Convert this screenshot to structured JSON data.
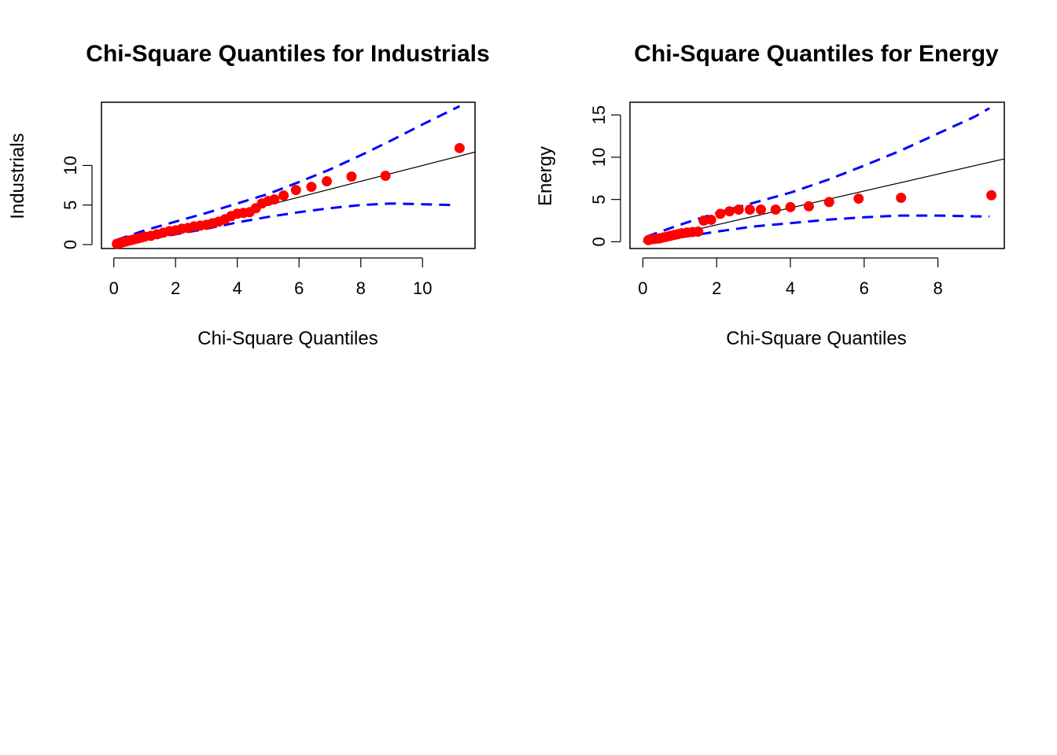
{
  "chart_data": [
    {
      "type": "scatter",
      "title": "Chi-Square Quantiles for Industrials",
      "xlabel": "Chi-Square Quantiles",
      "ylabel": "Industrials",
      "xlim": [
        -0.4,
        11.7
      ],
      "ylim": [
        -0.5,
        18.0
      ],
      "x_ticks": [
        0,
        2,
        4,
        6,
        8,
        10
      ],
      "y_ticks": [
        0,
        5,
        10
      ],
      "grid": false,
      "colors": {
        "points": "#ff0000",
        "reference_line": "#000000",
        "envelope": "#0000ff"
      },
      "reference_line": {
        "intercept": 0.0,
        "slope": 1.0
      },
      "points": [
        [
          0.1,
          0.1
        ],
        [
          0.2,
          0.2
        ],
        [
          0.3,
          0.3
        ],
        [
          0.4,
          0.4
        ],
        [
          0.5,
          0.5
        ],
        [
          0.6,
          0.6
        ],
        [
          0.7,
          0.7
        ],
        [
          0.8,
          0.8
        ],
        [
          0.9,
          0.9
        ],
        [
          1.0,
          1.0
        ],
        [
          1.2,
          1.1
        ],
        [
          1.4,
          1.3
        ],
        [
          1.6,
          1.5
        ],
        [
          1.8,
          1.7
        ],
        [
          2.0,
          1.8
        ],
        [
          2.2,
          2.0
        ],
        [
          2.4,
          2.1
        ],
        [
          2.6,
          2.3
        ],
        [
          2.8,
          2.4
        ],
        [
          3.0,
          2.5
        ],
        [
          3.2,
          2.7
        ],
        [
          3.4,
          2.9
        ],
        [
          3.6,
          3.2
        ],
        [
          3.8,
          3.6
        ],
        [
          4.0,
          3.9
        ],
        [
          4.2,
          4.0
        ],
        [
          4.4,
          4.1
        ],
        [
          4.6,
          4.6
        ],
        [
          4.8,
          5.2
        ],
        [
          5.0,
          5.5
        ],
        [
          5.2,
          5.7
        ],
        [
          5.5,
          6.2
        ],
        [
          5.9,
          6.9
        ],
        [
          6.4,
          7.3
        ],
        [
          6.9,
          8.0
        ],
        [
          7.7,
          8.6
        ],
        [
          8.8,
          8.7
        ],
        [
          11.2,
          12.2
        ]
      ],
      "envelope_upper": [
        [
          0.1,
          0.6
        ],
        [
          1.0,
          1.8
        ],
        [
          2.0,
          2.9
        ],
        [
          3.0,
          4.0
        ],
        [
          4.0,
          5.2
        ],
        [
          5.0,
          6.4
        ],
        [
          6.0,
          7.9
        ],
        [
          7.0,
          9.5
        ],
        [
          8.0,
          11.3
        ],
        [
          9.0,
          13.2
        ],
        [
          10.0,
          15.2
        ],
        [
          11.2,
          17.5
        ]
      ],
      "envelope_lower": [
        [
          0.1,
          0.0
        ],
        [
          1.0,
          0.6
        ],
        [
          2.0,
          1.3
        ],
        [
          3.0,
          2.0
        ],
        [
          4.0,
          2.8
        ],
        [
          5.0,
          3.5
        ],
        [
          6.0,
          4.1
        ],
        [
          7.0,
          4.6
        ],
        [
          8.0,
          5.0
        ],
        [
          9.0,
          5.2
        ],
        [
          10.0,
          5.1
        ],
        [
          11.0,
          5.0
        ]
      ]
    },
    {
      "type": "scatter",
      "title": "Chi-Square Quantiles for Energy",
      "xlabel": "Chi-Square Quantiles",
      "ylabel": "Energy",
      "xlim": [
        -0.35,
        9.8
      ],
      "ylim": [
        -0.8,
        16.5
      ],
      "x_ticks": [
        0,
        2,
        4,
        6,
        8
      ],
      "y_ticks": [
        0,
        5,
        10,
        15
      ],
      "grid": false,
      "colors": {
        "points": "#ff0000",
        "reference_line": "#000000",
        "envelope": "#0000ff"
      },
      "reference_line": {
        "intercept": 0.0,
        "slope": 1.0
      },
      "points": [
        [
          0.15,
          0.2
        ],
        [
          0.25,
          0.3
        ],
        [
          0.35,
          0.35
        ],
        [
          0.45,
          0.4
        ],
        [
          0.55,
          0.5
        ],
        [
          0.65,
          0.6
        ],
        [
          0.75,
          0.7
        ],
        [
          0.85,
          0.8
        ],
        [
          0.95,
          0.9
        ],
        [
          1.05,
          1.0
        ],
        [
          1.2,
          1.1
        ],
        [
          1.35,
          1.15
        ],
        [
          1.5,
          1.2
        ],
        [
          1.65,
          2.5
        ],
        [
          1.85,
          2.6
        ],
        [
          2.1,
          3.3
        ],
        [
          2.35,
          3.6
        ],
        [
          2.6,
          3.8
        ],
        [
          2.9,
          3.8
        ],
        [
          3.2,
          3.8
        ],
        [
          3.6,
          3.8
        ],
        [
          4.0,
          4.1
        ],
        [
          4.5,
          4.2
        ],
        [
          5.05,
          4.7
        ],
        [
          5.85,
          5.1
        ],
        [
          7.0,
          5.2
        ],
        [
          9.45,
          5.5
        ]
      ],
      "envelope_upper": [
        [
          0.1,
          0.6
        ],
        [
          1.0,
          2.0
        ],
        [
          2.0,
          3.4
        ],
        [
          3.0,
          4.6
        ],
        [
          4.0,
          5.8
        ],
        [
          5.0,
          7.3
        ],
        [
          6.0,
          9.0
        ],
        [
          7.0,
          10.8
        ],
        [
          8.0,
          12.8
        ],
        [
          9.0,
          14.8
        ],
        [
          9.4,
          15.8
        ]
      ],
      "envelope_lower": [
        [
          0.1,
          0.0
        ],
        [
          1.0,
          0.5
        ],
        [
          2.0,
          1.2
        ],
        [
          3.0,
          1.8
        ],
        [
          4.0,
          2.2
        ],
        [
          5.0,
          2.6
        ],
        [
          6.0,
          2.9
        ],
        [
          7.0,
          3.1
        ],
        [
          8.0,
          3.1
        ],
        [
          9.0,
          3.0
        ],
        [
          9.4,
          3.0
        ]
      ]
    }
  ]
}
